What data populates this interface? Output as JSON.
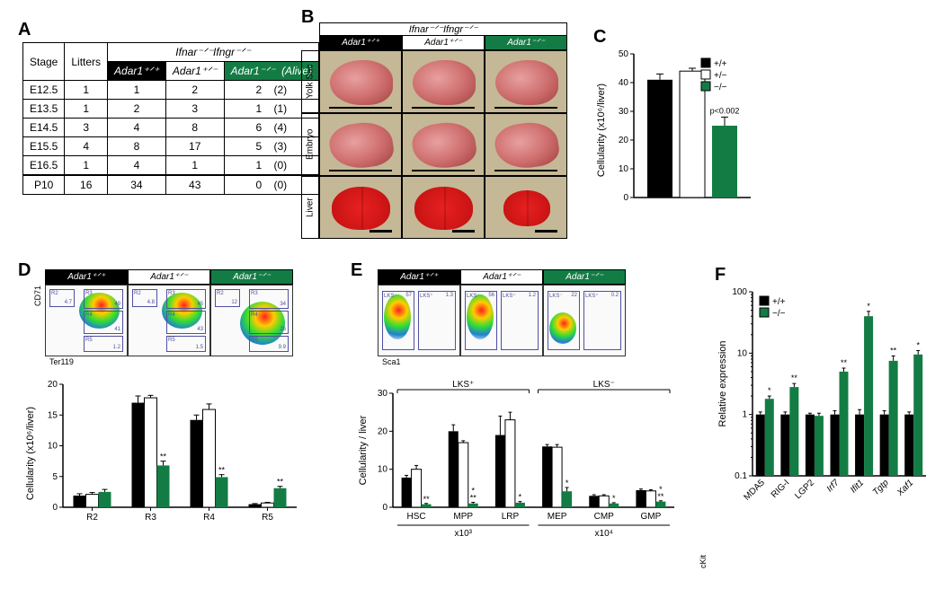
{
  "colors": {
    "black": "#000000",
    "white": "#ffffff",
    "green": "#137c44"
  },
  "panelA": {
    "label": "A",
    "spanner": "Ifnar⁻ᐟ⁻Ifngr⁻ᐟ⁻",
    "columns": [
      "Stage",
      "Litters",
      "Adar1⁺ᐟ⁺",
      "Adar1⁺ᐟ⁻",
      "Adar1⁻ᐟ⁻",
      "(Alive)"
    ],
    "rows": [
      [
        "E12.5",
        1,
        1,
        2,
        2,
        "(2)"
      ],
      [
        "E13.5",
        1,
        2,
        3,
        1,
        "(1)"
      ],
      [
        "E14.5",
        3,
        4,
        8,
        6,
        "(4)"
      ],
      [
        "E15.5",
        4,
        8,
        17,
        5,
        "(3)"
      ],
      [
        "E16.5",
        1,
        4,
        1,
        1,
        "(0)"
      ]
    ],
    "total": [
      "P10",
      16,
      34,
      43,
      0,
      "(0)"
    ]
  },
  "panelB": {
    "label": "B",
    "header": "Ifnar⁻ᐟ⁻Ifngr⁻ᐟ⁻",
    "cols": [
      "Adar1⁺ᐟ⁺",
      "Adar1⁺ᐟ⁻",
      "Adar1⁻ᐟ⁻"
    ],
    "rows": [
      "Yolk Sac",
      "Embryo",
      "Liver"
    ]
  },
  "panelC": {
    "label": "C",
    "ytitle": "Cellularity (x10⁶/liver)",
    "ylim": [
      0,
      50
    ],
    "ytick_step": 10,
    "legend": [
      "+/+",
      "+/−",
      "−/−"
    ],
    "values": [
      41,
      44,
      25
    ],
    "errors": [
      2,
      1,
      3
    ],
    "pvalue": "p<0.002"
  },
  "panelD": {
    "label": "D",
    "cols": [
      "Adar1⁺ᐟ⁺",
      "Adar1⁺ᐟ⁻",
      "Adar1⁻ᐟ⁻"
    ],
    "yaxis": "CD71",
    "xaxis": "Ter119",
    "facs_gates": [
      [
        {
          "lab": "R2",
          "val": "4.7"
        },
        {
          "lab": "R3",
          "val": "49"
        },
        {
          "lab": "R4",
          "val": "41"
        },
        {
          "lab": "R5",
          "val": "1.2"
        }
      ],
      [
        {
          "lab": "R2",
          "val": "4.8"
        },
        {
          "lab": "R3",
          "val": "45"
        },
        {
          "lab": "R4",
          "val": "43"
        },
        {
          "lab": "R5",
          "val": "1.5"
        }
      ],
      [
        {
          "lab": "R2",
          "val": "12"
        },
        {
          "lab": "R3",
          "val": "34"
        },
        {
          "lab": "R4",
          "val": "26"
        },
        {
          "lab": "R5",
          "val": "9.9"
        }
      ]
    ],
    "chart": {
      "ytitle": "Cellularity (x10⁶/liver)",
      "ylim": [
        0,
        20
      ],
      "ytick_step": 5,
      "categories": [
        "R2",
        "R3",
        "R4",
        "R5"
      ],
      "series": {
        "pp": [
          1.9,
          17.0,
          14.2,
          0.5
        ],
        "pm": [
          2.1,
          17.8,
          15.9,
          0.7
        ],
        "mm": [
          2.5,
          6.8,
          4.9,
          3.1
        ]
      },
      "errors": {
        "pp": [
          0.3,
          1.1,
          0.8,
          0.1
        ],
        "pm": [
          0.3,
          0.4,
          0.9,
          0.1
        ],
        "mm": [
          0.4,
          0.7,
          0.4,
          0.3
        ]
      },
      "sig_mm": [
        "",
        "**",
        "**",
        "**"
      ]
    }
  },
  "panelE": {
    "label": "E",
    "cols": [
      "Adar1⁺ᐟ⁺",
      "Adar1⁺ᐟ⁻",
      "Adar1⁻ᐟ⁻"
    ],
    "yaxis": "cKit",
    "xaxis": "Sca1",
    "facs_gates": [
      [
        {
          "lab": "LKS⁻",
          "val": "57"
        },
        {
          "lab": "LKS⁺",
          "val": "1.3"
        }
      ],
      [
        {
          "lab": "LKS⁻",
          "val": "56"
        },
        {
          "lab": "LKS⁺",
          "val": "1.2"
        }
      ],
      [
        {
          "lab": "LKS⁻",
          "val": "22"
        },
        {
          "lab": "LKS⁺",
          "val": "0.2"
        }
      ]
    ],
    "chart": {
      "ytitle": "Cellularity / liver",
      "ylim": [
        0,
        30
      ],
      "ytick_step": 10,
      "groups": [
        {
          "label": "LKS⁺",
          "cats": [
            "HSC",
            "MPP",
            "LRP"
          ]
        },
        {
          "label": "LKS⁻",
          "cats": [
            "MEP",
            "CMP",
            "GMP"
          ]
        }
      ],
      "xunits": [
        "x10³",
        "x10⁴"
      ],
      "categories": [
        "HSC",
        "MPP",
        "LRP",
        "MEP",
        "CMP",
        "GMP"
      ],
      "series": {
        "pp": [
          7.8,
          20,
          19,
          16,
          3.0,
          4.5
        ],
        "pm": [
          10,
          17,
          23,
          15.8,
          3.0,
          4.3
        ],
        "mm": [
          0.8,
          1.0,
          1.2,
          4.2,
          1.0,
          1.5
        ]
      },
      "errors": {
        "pp": [
          0.6,
          1.7,
          5,
          0.5,
          0.3,
          0.3
        ],
        "pm": [
          1.0,
          0.5,
          2,
          0.7,
          0.3,
          0.3
        ],
        "mm": [
          0.2,
          0.3,
          0.3,
          1.0,
          0.2,
          0.2
        ]
      },
      "sig_pm": [
        "",
        "",
        "",
        "",
        "",
        ""
      ],
      "sig_mm": [
        "**",
        "**",
        "*",
        "*",
        "*",
        "**"
      ],
      "sig_extra_top": [
        "",
        "*",
        "",
        "",
        "",
        "*"
      ]
    }
  },
  "panelF": {
    "label": "F",
    "ytitle": "Relative expression",
    "yscale": "log",
    "ylim": [
      0.1,
      100
    ],
    "yticks": [
      0.1,
      1,
      10,
      100
    ],
    "legend": [
      "+/+",
      "−/−"
    ],
    "categories": [
      "MDA5",
      "RIG-I",
      "LGP2",
      "Irf7",
      "Ifit1",
      "Tgtp",
      "Xaf1"
    ],
    "italic_cats": [
      false,
      false,
      false,
      true,
      true,
      true,
      true
    ],
    "series": {
      "pp": [
        1,
        1,
        1,
        1,
        1,
        1,
        1
      ],
      "mm": [
        1.8,
        2.8,
        0.95,
        5.0,
        40,
        7.5,
        9.5
      ]
    },
    "errors": {
      "pp": [
        0.1,
        0.1,
        0.05,
        0.15,
        0.2,
        0.15,
        0.1
      ],
      "mm": [
        0.2,
        0.4,
        0.1,
        0.7,
        8,
        1.5,
        1.5
      ]
    },
    "sig_mm": [
      "*",
      "**",
      "",
      "**",
      "*",
      "**",
      "*"
    ]
  }
}
